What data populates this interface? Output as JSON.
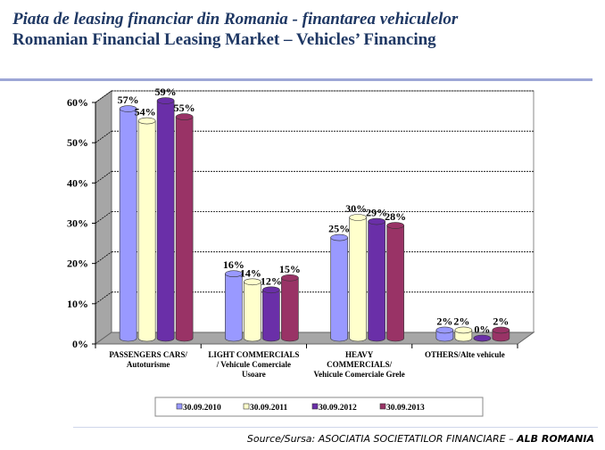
{
  "header": {
    "title_ro": "Piata de leasing financiar din Romania - finantarea vehiculelor",
    "title_en": "Romanian Financial Leasing Market – Vehicles’ Financing"
  },
  "footer": {
    "source_prefix": "Source/Sursa: ASOCIATIA SOCIETATILOR FINANCIARE – ",
    "source_bold": "ALB ROMANIA"
  },
  "chart_data": {
    "type": "bar",
    "style": "3d-cylinder",
    "categories": [
      [
        "PASSENGERS CARS/",
        "Autoturisme"
      ],
      [
        "LIGHT COMMERCIALS",
        "/ Vehicule Comerciale",
        "Usoare"
      ],
      [
        "HEAVY",
        "COMMERCIALS/",
        "Vehicule Comerciale Grele"
      ],
      [
        "OTHERS/Alte vehicule"
      ]
    ],
    "series": [
      {
        "name": "30.09.2010",
        "color": "#9999ff",
        "values": [
          57,
          16,
          25,
          2
        ]
      },
      {
        "name": "30.09.2011",
        "color": "#ffffcc",
        "values": [
          54,
          14,
          30,
          2
        ]
      },
      {
        "name": "30.09.2012",
        "color": "#6a2fa8",
        "values": [
          59,
          12,
          29,
          0
        ]
      },
      {
        "name": "30.09.2013",
        "color": "#993366",
        "values": [
          55,
          15,
          28,
          2
        ]
      }
    ],
    "ylim": [
      0,
      60
    ],
    "yticks": [
      "0%",
      "10%",
      "20%",
      "30%",
      "40%",
      "50%",
      "60%"
    ],
    "grid": true,
    "legend": "bottom"
  }
}
